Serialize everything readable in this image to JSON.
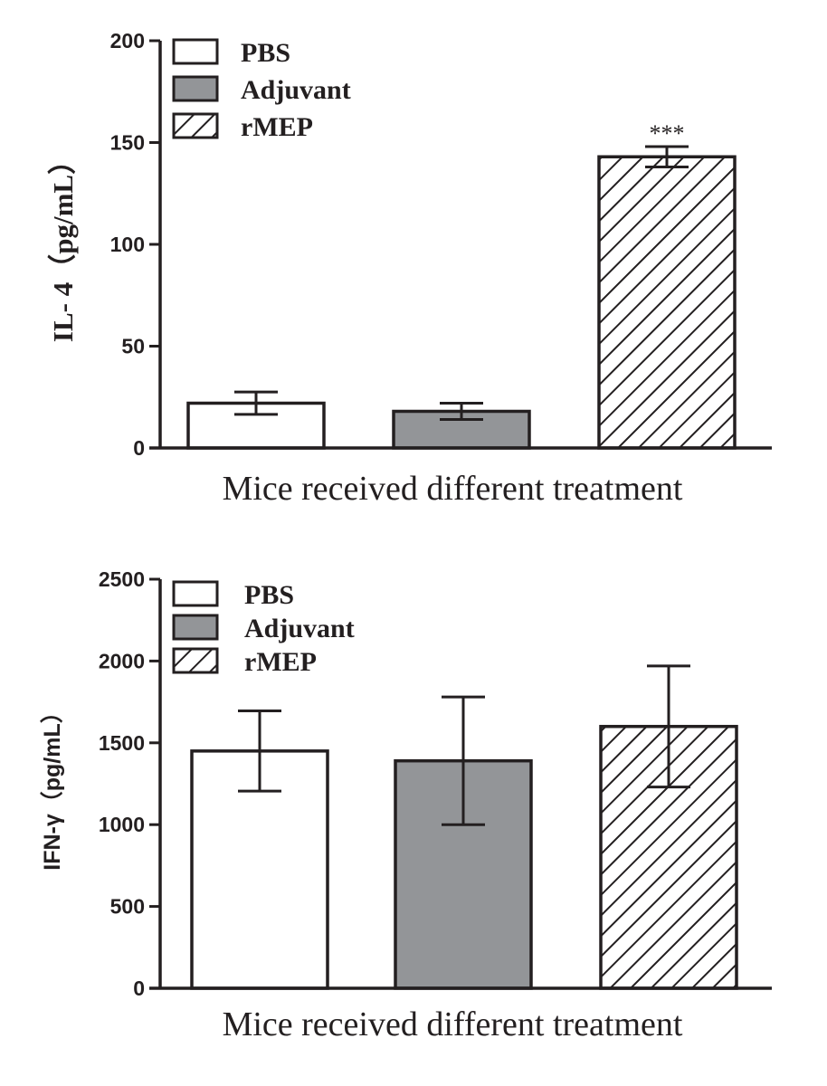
{
  "chart_data": [
    {
      "type": "bar",
      "id": "il4",
      "ylabel": "IL- 4（pg/mL）",
      "xlabel": "Mice received different treatment",
      "ylim": [
        0,
        200
      ],
      "yticks": [
        "0",
        "50",
        "100",
        "150",
        "200"
      ],
      "categories": [
        "PBS",
        "Adjuvant",
        "rMEP"
      ],
      "values": [
        22,
        18,
        143
      ],
      "errors": [
        5.5,
        4,
        5
      ],
      "fills": [
        "white",
        "gray",
        "hatch"
      ],
      "annotations": [
        {
          "category": "rMEP",
          "text": "***"
        }
      ],
      "legend": [
        {
          "label": "PBS",
          "fill": "white"
        },
        {
          "label": "Adjuvant",
          "fill": "gray"
        },
        {
          "label": "rMEP",
          "fill": "hatch"
        }
      ],
      "legend_position": "top-left"
    },
    {
      "type": "bar",
      "id": "ifng",
      "ylabel": "IFN-γ（pg/mL）",
      "xlabel": "Mice received different treatment",
      "ylim": [
        0,
        2500
      ],
      "yticks": [
        "0",
        "500",
        "1000",
        "1500",
        "2000",
        "2500"
      ],
      "categories": [
        "PBS",
        "Adjuvant",
        "rMEP"
      ],
      "values": [
        1450,
        1390,
        1600
      ],
      "errors": [
        245,
        390,
        370
      ],
      "fills": [
        "white",
        "gray",
        "hatch"
      ],
      "annotations": [],
      "legend": [
        {
          "label": "PBS",
          "fill": "white"
        },
        {
          "label": "Adjuvant",
          "fill": "gray"
        },
        {
          "label": "rMEP",
          "fill": "hatch"
        }
      ],
      "legend_position": "top-left"
    }
  ],
  "colors": {
    "ink": "#231f20",
    "gray_fill": "#939598",
    "white_fill": "#ffffff"
  }
}
